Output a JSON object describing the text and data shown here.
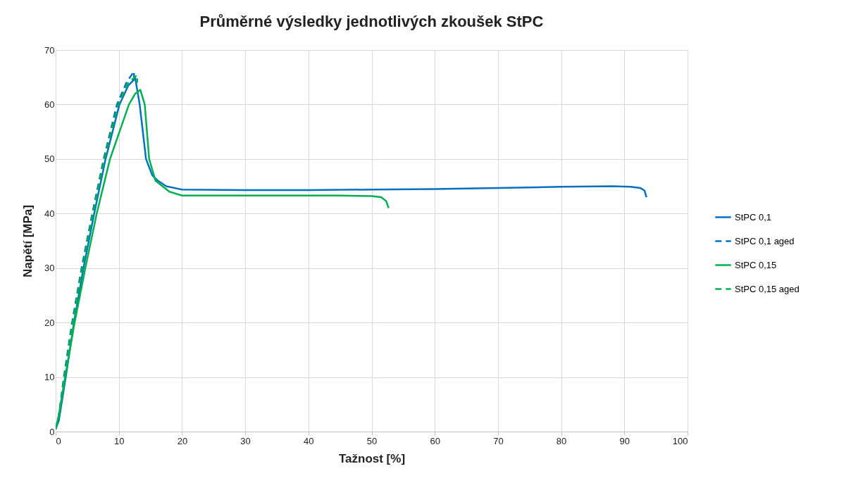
{
  "chart_data": {
    "type": "line",
    "title": "Průměrné výsledky jednotlivých zkoušek StPC",
    "xlabel": "Tažnost [%]",
    "ylabel": "Napětí [MPa]",
    "xlim": [
      0,
      100
    ],
    "xticks": [
      0,
      10,
      20,
      30,
      40,
      50,
      60,
      70,
      80,
      90,
      100
    ],
    "ylim": [
      0,
      70
    ],
    "yticks": [
      0,
      10,
      20,
      30,
      40,
      50,
      60,
      70
    ],
    "grid": true,
    "legend": "right",
    "marker": "none",
    "series": [
      {
        "name": "StPC 0,1",
        "color": "#0070c0",
        "line_style": "solid",
        "x": [
          0,
          0.5,
          1.6,
          2.9,
          4.4,
          6.1,
          7.9,
          10.1,
          11.5,
          12.6,
          13.3,
          14.3,
          15.3,
          16.2,
          17.5,
          20,
          30,
          40,
          50,
          60,
          70,
          80,
          88,
          91,
          92.5,
          93.2,
          93.5
        ],
        "values": [
          0.5,
          2,
          10,
          20,
          30,
          40,
          50,
          60,
          63.5,
          64.8,
          60,
          50,
          47,
          46,
          45,
          44.4,
          44.3,
          44.3,
          44.4,
          44.5,
          44.7,
          44.9,
          45,
          44.9,
          44.7,
          44.2,
          43
        ]
      },
      {
        "name": "StPC 0,1 aged",
        "color": "#0070c0",
        "line_style": "dashed",
        "x": [
          0,
          0.4,
          1.3,
          2.6,
          4.1,
          5.8,
          7.6,
          9.7,
          11.2,
          12.4,
          12.4
        ],
        "values": [
          0.5,
          2,
          10,
          20,
          30,
          40,
          50,
          60,
          64,
          66.1,
          64.5
        ]
      },
      {
        "name": "StPC 0,15",
        "color": "#00b050",
        "line_style": "solid",
        "x": [
          0,
          0.5,
          1.5,
          3.0,
          4.7,
          6.5,
          8.6,
          11.6,
          12.6,
          13.4,
          14.1,
          14.8,
          15.8,
          16.6,
          18,
          20,
          30,
          40,
          45,
          50,
          51.5,
          52.3,
          52.7
        ],
        "values": [
          0.5,
          3,
          10,
          20,
          30,
          40,
          50,
          60,
          62,
          62.7,
          60,
          50,
          46,
          45.3,
          44,
          43.3,
          43.3,
          43.3,
          43.3,
          43.2,
          43,
          42.3,
          41
        ]
      },
      {
        "name": "StPC 0,15 aged",
        "color": "#00b050",
        "line_style": "dashed",
        "x": [
          0,
          0.4,
          1.4,
          2.7,
          4.2,
          5.9,
          7.7,
          9.9,
          11.5,
          12.9,
          12.9
        ],
        "values": [
          0.5,
          2,
          10,
          20,
          30,
          40,
          50,
          60,
          64,
          65.4,
          64
        ]
      }
    ]
  }
}
